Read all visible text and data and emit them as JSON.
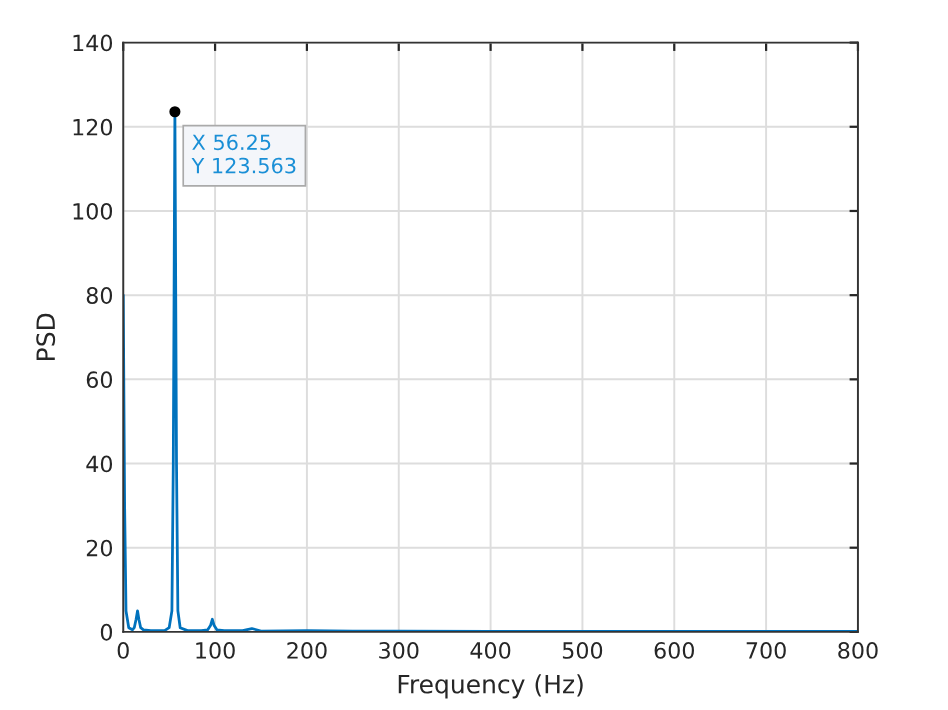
{
  "chart_data": {
    "type": "line",
    "xlabel": "Frequency (Hz)",
    "ylabel": "PSD",
    "series": [
      {
        "color": "#0072bd",
        "x": [
          0,
          1.5,
          3,
          6,
          10,
          12,
          14,
          15.6,
          17,
          19,
          22,
          30,
          45,
          50,
          53,
          54.5,
          56.25,
          58,
          59.5,
          62,
          70,
          85,
          92,
          95,
          97,
          99,
          102,
          110,
          130,
          140,
          150,
          200,
          250,
          300,
          400,
          500,
          600,
          700,
          800
        ],
        "values": [
          80,
          30,
          5,
          1,
          0.5,
          1,
          3,
          5,
          3,
          1,
          0.5,
          0.3,
          0.3,
          1,
          5,
          40,
          123.563,
          40,
          5,
          1,
          0.3,
          0.3,
          0.5,
          1.5,
          3,
          1.5,
          0.5,
          0.3,
          0.3,
          0.8,
          0.2,
          0.3,
          0.2,
          0.2,
          0.1,
          0.1,
          0.1,
          0.1,
          0.1
        ]
      }
    ],
    "xlim": [
      0,
      800
    ],
    "xticks": [
      0,
      100,
      200,
      300,
      400,
      500,
      600,
      700,
      800
    ],
    "ylim": [
      0,
      140
    ],
    "yticks": [
      0,
      20,
      40,
      60,
      80,
      100,
      120,
      140
    ],
    "grid": true,
    "marker": "none",
    "line_style": "solid",
    "annotations": [
      {
        "text": "X 56.25\nY 123.563",
        "x": 56.25,
        "y": 123.563
      }
    ]
  }
}
